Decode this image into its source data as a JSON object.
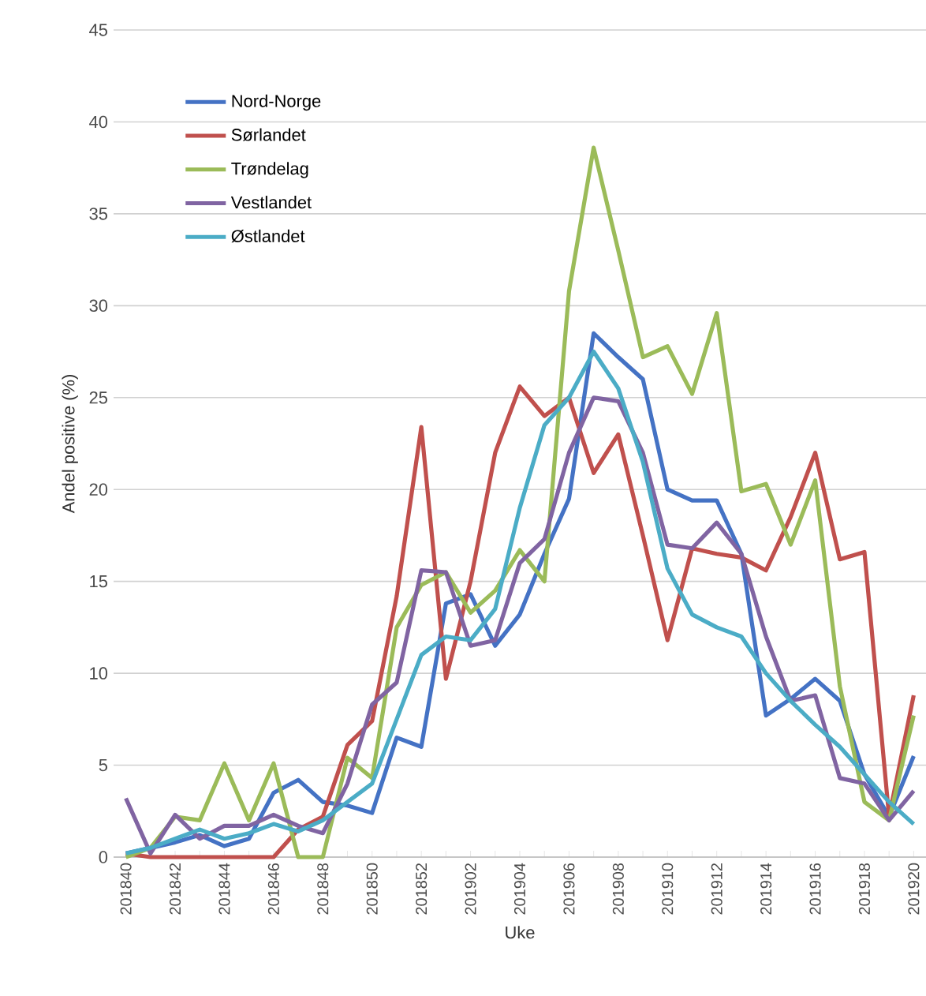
{
  "chart_data": {
    "type": "line",
    "xlabel": "Uke",
    "ylabel": "Andel positive (%)",
    "categories": [
      "201840",
      null,
      "201842",
      null,
      "201844",
      null,
      "201846",
      null,
      "201848",
      null,
      "201850",
      null,
      "201852",
      null,
      "201902",
      null,
      "201904",
      null,
      "201906",
      null,
      "201908",
      null,
      "201910",
      null,
      "201912",
      null,
      "201914",
      null,
      "201916",
      null,
      "201918",
      null,
      "201920"
    ],
    "series": [
      {
        "name": "Nord-Norge",
        "color": "#4472c4",
        "values": [
          0.2,
          0.5,
          0.8,
          1.2,
          0.6,
          1.0,
          3.5,
          4.2,
          3.0,
          2.8,
          2.4,
          6.5,
          6.0,
          13.8,
          14.3,
          11.5,
          13.2,
          16.5,
          19.5,
          28.5,
          27.2,
          26.0,
          20.0,
          19.4,
          19.4,
          16.5,
          7.7,
          8.6,
          9.7,
          8.5,
          4.5,
          2.2,
          5.5
        ]
      },
      {
        "name": "Sørlandet",
        "color": "#c0504d",
        "values": [
          0.2,
          0,
          0,
          0,
          0,
          0,
          0,
          1.5,
          2.2,
          6.1,
          7.4,
          14.2,
          23.4,
          9.7,
          15.0,
          22.0,
          25.6,
          24.0,
          25.0,
          20.9,
          23.0,
          17.5,
          11.8,
          16.8,
          16.5,
          16.3,
          15.6,
          18.5,
          22.0,
          16.2,
          16.6,
          2.2,
          8.8
        ]
      },
      {
        "name": "Trøndelag",
        "color": "#9bbb59",
        "values": [
          0,
          0.5,
          2.2,
          2.0,
          5.1,
          2.0,
          5.1,
          0,
          0,
          5.4,
          4.3,
          12.5,
          14.8,
          15.5,
          13.3,
          14.5,
          16.7,
          15.0,
          30.8,
          38.6,
          33.0,
          27.2,
          27.8,
          25.2,
          29.6,
          19.9,
          20.3,
          17.0,
          20.5,
          9.3,
          3.0,
          2.0,
          7.7
        ]
      },
      {
        "name": "Vestlandet",
        "color": "#8064a2",
        "values": [
          3.2,
          0.2,
          2.3,
          1.0,
          1.7,
          1.7,
          2.3,
          1.7,
          1.3,
          4.0,
          8.3,
          9.5,
          15.6,
          15.5,
          11.5,
          11.8,
          16.0,
          17.3,
          22.0,
          25.0,
          24.8,
          22.0,
          17.0,
          16.8,
          18.2,
          16.5,
          12.0,
          8.5,
          8.8,
          4.3,
          4.0,
          2.0,
          3.6
        ]
      },
      {
        "name": "Østlandet",
        "color": "#4bacc6",
        "values": [
          0.2,
          0.5,
          1.0,
          1.5,
          1.0,
          1.3,
          1.8,
          1.4,
          2.0,
          3.0,
          4.0,
          7.5,
          11.0,
          12.0,
          11.8,
          13.5,
          19.0,
          23.5,
          25.0,
          27.5,
          25.5,
          21.5,
          15.7,
          13.2,
          12.5,
          12.0,
          10.0,
          8.5,
          7.2,
          6.0,
          4.5,
          3.0,
          1.8
        ]
      }
    ],
    "ylim": [
      0,
      45
    ],
    "yticks": [
      0,
      5,
      10,
      15,
      20,
      25,
      30,
      35,
      40,
      45
    ],
    "grid": "y",
    "legend": "top left",
    "marker": "none",
    "line_style": "solid"
  }
}
